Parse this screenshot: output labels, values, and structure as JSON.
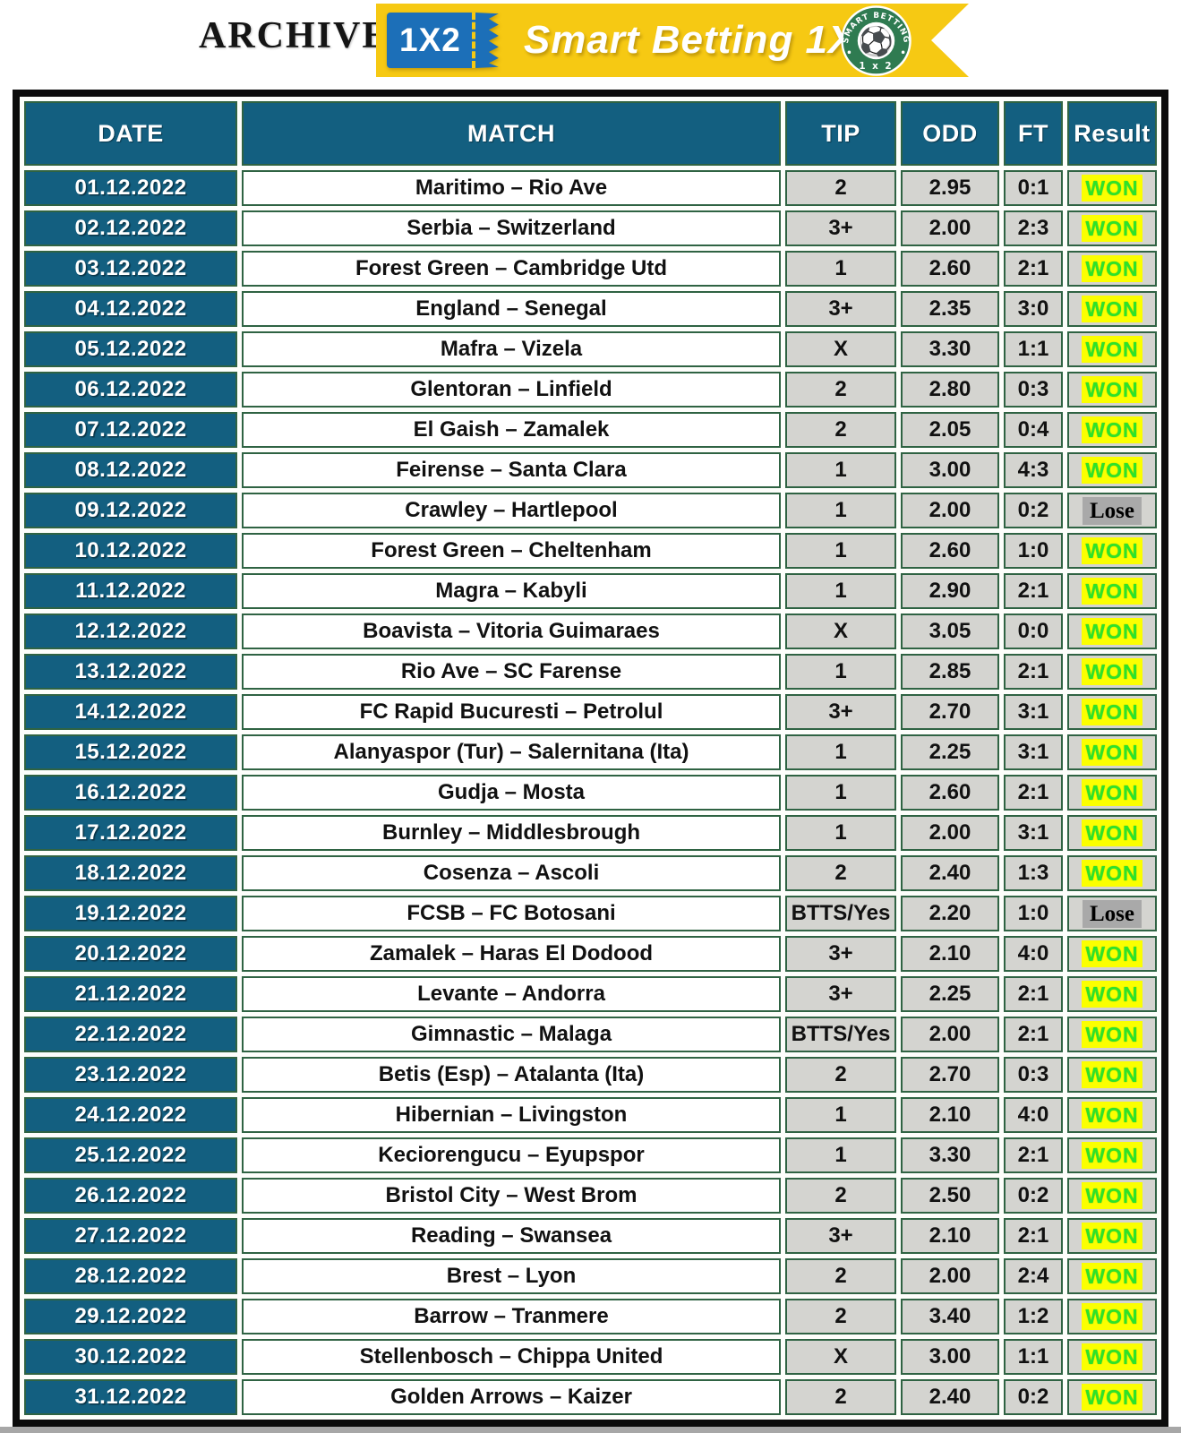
{
  "header": {
    "archive_label": "ARCHIVE",
    "ribbon": {
      "ticket_label": "1X2",
      "title": "Smart Betting 1X2",
      "logo": {
        "top_text": "SMART BETTING",
        "bottom_text": "1 x 2",
        "ball_glyph": "⚽"
      }
    }
  },
  "colors": {
    "banner_yellow": "#F6C913",
    "ticket_blue": "#1C6FB8",
    "cell_teal": "#135F80",
    "cell_grey": "#D4D4D0",
    "border_green": "#2F6343",
    "outer_border": "#0B0B0B",
    "won_text": "#2CE32B",
    "won_highlight": "#FBFF00",
    "lose_highlight": "#A9A9A9",
    "logo_green": "#2F7B51"
  },
  "table": {
    "columns": [
      "DATE",
      "MATCH",
      "TIP",
      "ODD",
      "FT",
      "Result"
    ],
    "rows": [
      {
        "date": "01.12.2022",
        "match": "Maritimo – Rio Ave",
        "tip": "2",
        "odd": "2.95",
        "ft": "0:1",
        "result": "WON"
      },
      {
        "date": "02.12.2022",
        "match": "Serbia – Switzerland",
        "tip": "3+",
        "odd": "2.00",
        "ft": "2:3",
        "result": "WON"
      },
      {
        "date": "03.12.2022",
        "match": "Forest Green – Cambridge Utd",
        "tip": "1",
        "odd": "2.60",
        "ft": "2:1",
        "result": "WON"
      },
      {
        "date": "04.12.2022",
        "match": "England – Senegal",
        "tip": "3+",
        "odd": "2.35",
        "ft": "3:0",
        "result": "WON"
      },
      {
        "date": "05.12.2022",
        "match": "Mafra – Vizela",
        "tip": "X",
        "odd": "3.30",
        "ft": "1:1",
        "result": "WON"
      },
      {
        "date": "06.12.2022",
        "match": "Glentoran – Linfield",
        "tip": "2",
        "odd": "2.80",
        "ft": "0:3",
        "result": "WON"
      },
      {
        "date": "07.12.2022",
        "match": "El Gaish – Zamalek",
        "tip": "2",
        "odd": "2.05",
        "ft": "0:4",
        "result": "WON"
      },
      {
        "date": "08.12.2022",
        "match": "Feirense – Santa Clara",
        "tip": "1",
        "odd": "3.00",
        "ft": "4:3",
        "result": "WON"
      },
      {
        "date": "09.12.2022",
        "match": "Crawley – Hartlepool",
        "tip": "1",
        "odd": "2.00",
        "ft": "0:2",
        "result": "Lose"
      },
      {
        "date": "10.12.2022",
        "match": "Forest Green – Cheltenham",
        "tip": "1",
        "odd": "2.60",
        "ft": "1:0",
        "result": "WON"
      },
      {
        "date": "11.12.2022",
        "match": "Magra – Kabyli",
        "tip": "1",
        "odd": "2.90",
        "ft": "2:1",
        "result": "WON"
      },
      {
        "date": "12.12.2022",
        "match": "Boavista – Vitoria Guimaraes",
        "tip": "X",
        "odd": "3.05",
        "ft": "0:0",
        "result": "WON"
      },
      {
        "date": "13.12.2022",
        "match": "Rio Ave – SC Farense",
        "tip": "1",
        "odd": "2.85",
        "ft": "2:1",
        "result": "WON"
      },
      {
        "date": "14.12.2022",
        "match": "FC Rapid Bucuresti – Petrolul",
        "tip": "3+",
        "odd": "2.70",
        "ft": "3:1",
        "result": "WON"
      },
      {
        "date": "15.12.2022",
        "match": "Alanyaspor (Tur) – Salernitana (Ita)",
        "tip": "1",
        "odd": "2.25",
        "ft": "3:1",
        "result": "WON"
      },
      {
        "date": "16.12.2022",
        "match": "Gudja – Mosta",
        "tip": "1",
        "odd": "2.60",
        "ft": "2:1",
        "result": "WON"
      },
      {
        "date": "17.12.2022",
        "match": "Burnley – Middlesbrough",
        "tip": "1",
        "odd": "2.00",
        "ft": "3:1",
        "result": "WON"
      },
      {
        "date": "18.12.2022",
        "match": "Cosenza – Ascoli",
        "tip": "2",
        "odd": "2.40",
        "ft": "1:3",
        "result": "WON"
      },
      {
        "date": "19.12.2022",
        "match": "FCSB – FC Botosani",
        "tip": "BTTS/Yes",
        "odd": "2.20",
        "ft": "1:0",
        "result": "Lose"
      },
      {
        "date": "20.12.2022",
        "match": "Zamalek – Haras El Dodood",
        "tip": "3+",
        "odd": "2.10",
        "ft": "4:0",
        "result": "WON"
      },
      {
        "date": "21.12.2022",
        "match": "Levante – Andorra",
        "tip": "3+",
        "odd": "2.25",
        "ft": "2:1",
        "result": "WON"
      },
      {
        "date": "22.12.2022",
        "match": "Gimnastic – Malaga",
        "tip": "BTTS/Yes",
        "odd": "2.00",
        "ft": "2:1",
        "result": "WON"
      },
      {
        "date": "23.12.2022",
        "match": "Betis (Esp) – Atalanta (Ita)",
        "tip": "2",
        "odd": "2.70",
        "ft": "0:3",
        "result": "WON"
      },
      {
        "date": "24.12.2022",
        "match": "Hibernian – Livingston",
        "tip": "1",
        "odd": "2.10",
        "ft": "4:0",
        "result": "WON"
      },
      {
        "date": "25.12.2022",
        "match": "Keciorengucu – Eyupspor",
        "tip": "1",
        "odd": "3.30",
        "ft": "2:1",
        "result": "WON"
      },
      {
        "date": "26.12.2022",
        "match": "Bristol City – West Brom",
        "tip": "2",
        "odd": "2.50",
        "ft": "0:2",
        "result": "WON"
      },
      {
        "date": "27.12.2022",
        "match": "Reading – Swansea",
        "tip": "3+",
        "odd": "2.10",
        "ft": "2:1",
        "result": "WON"
      },
      {
        "date": "28.12.2022",
        "match": "Brest – Lyon",
        "tip": "2",
        "odd": "2.00",
        "ft": "2:4",
        "result": "WON"
      },
      {
        "date": "29.12.2022",
        "match": "Barrow – Tranmere",
        "tip": "2",
        "odd": "3.40",
        "ft": "1:2",
        "result": "WON"
      },
      {
        "date": "30.12.2022",
        "match": "Stellenbosch – Chippa United",
        "tip": "X",
        "odd": "3.00",
        "ft": "1:1",
        "result": "WON"
      },
      {
        "date": "31.12.2022",
        "match": "Golden Arrows – Kaizer",
        "tip": "2",
        "odd": "2.40",
        "ft": "0:2",
        "result": "WON"
      }
    ]
  }
}
